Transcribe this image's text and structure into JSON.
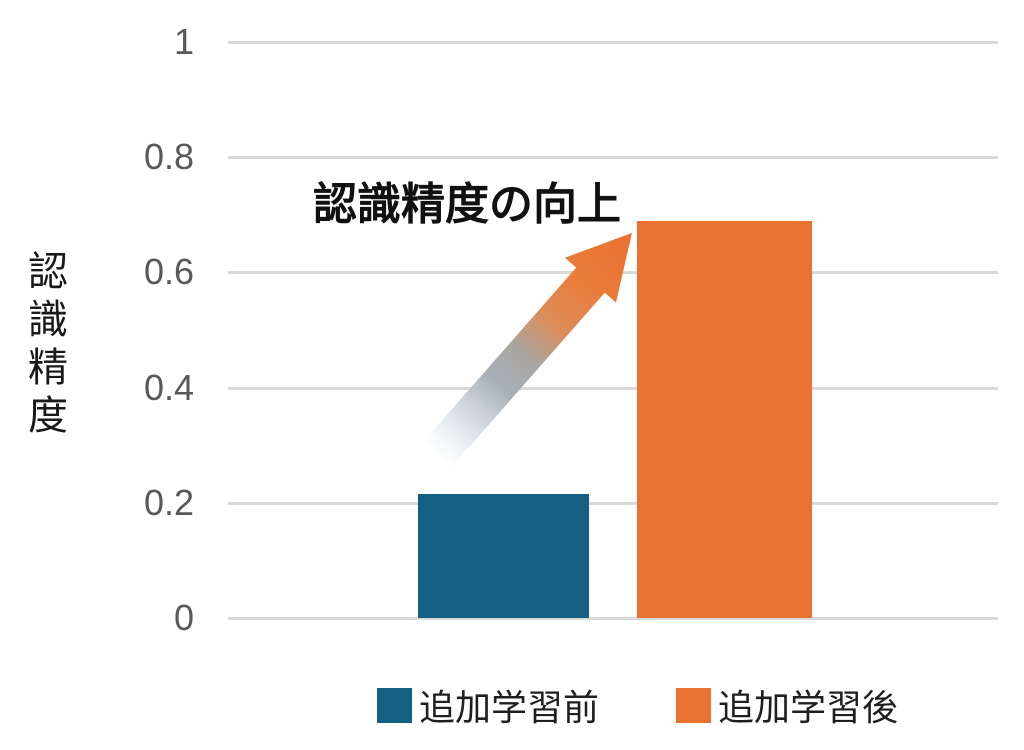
{
  "chart_data": {
    "type": "bar",
    "title": "",
    "ylabel": "認識精度",
    "annotation": "認識精度の向上",
    "categories": [
      "追加学習前",
      "追加学習後"
    ],
    "series": [
      {
        "name": "追加学習前",
        "value": 0.215,
        "color": "#156082"
      },
      {
        "name": "追加学習後",
        "value": 0.69,
        "color": "#E97132"
      }
    ],
    "yticks": [
      {
        "value": 0,
        "label": "0"
      },
      {
        "value": 0.2,
        "label": "0.2"
      },
      {
        "value": 0.4,
        "label": "0.4"
      },
      {
        "value": 0.6,
        "label": "0.6"
      },
      {
        "value": 0.8,
        "label": "0.8"
      },
      {
        "value": 1,
        "label": "1"
      }
    ],
    "ylim": [
      0,
      1
    ],
    "grid": true,
    "legend_position": "bottom",
    "background_color": "#ffffff",
    "gridline_color": "#d9d9d9",
    "tick_label_color": "#595959",
    "arrow_gradient": {
      "tail": "#f2f5f7",
      "mid": "#a7b0b9",
      "head": "#E97132"
    }
  }
}
